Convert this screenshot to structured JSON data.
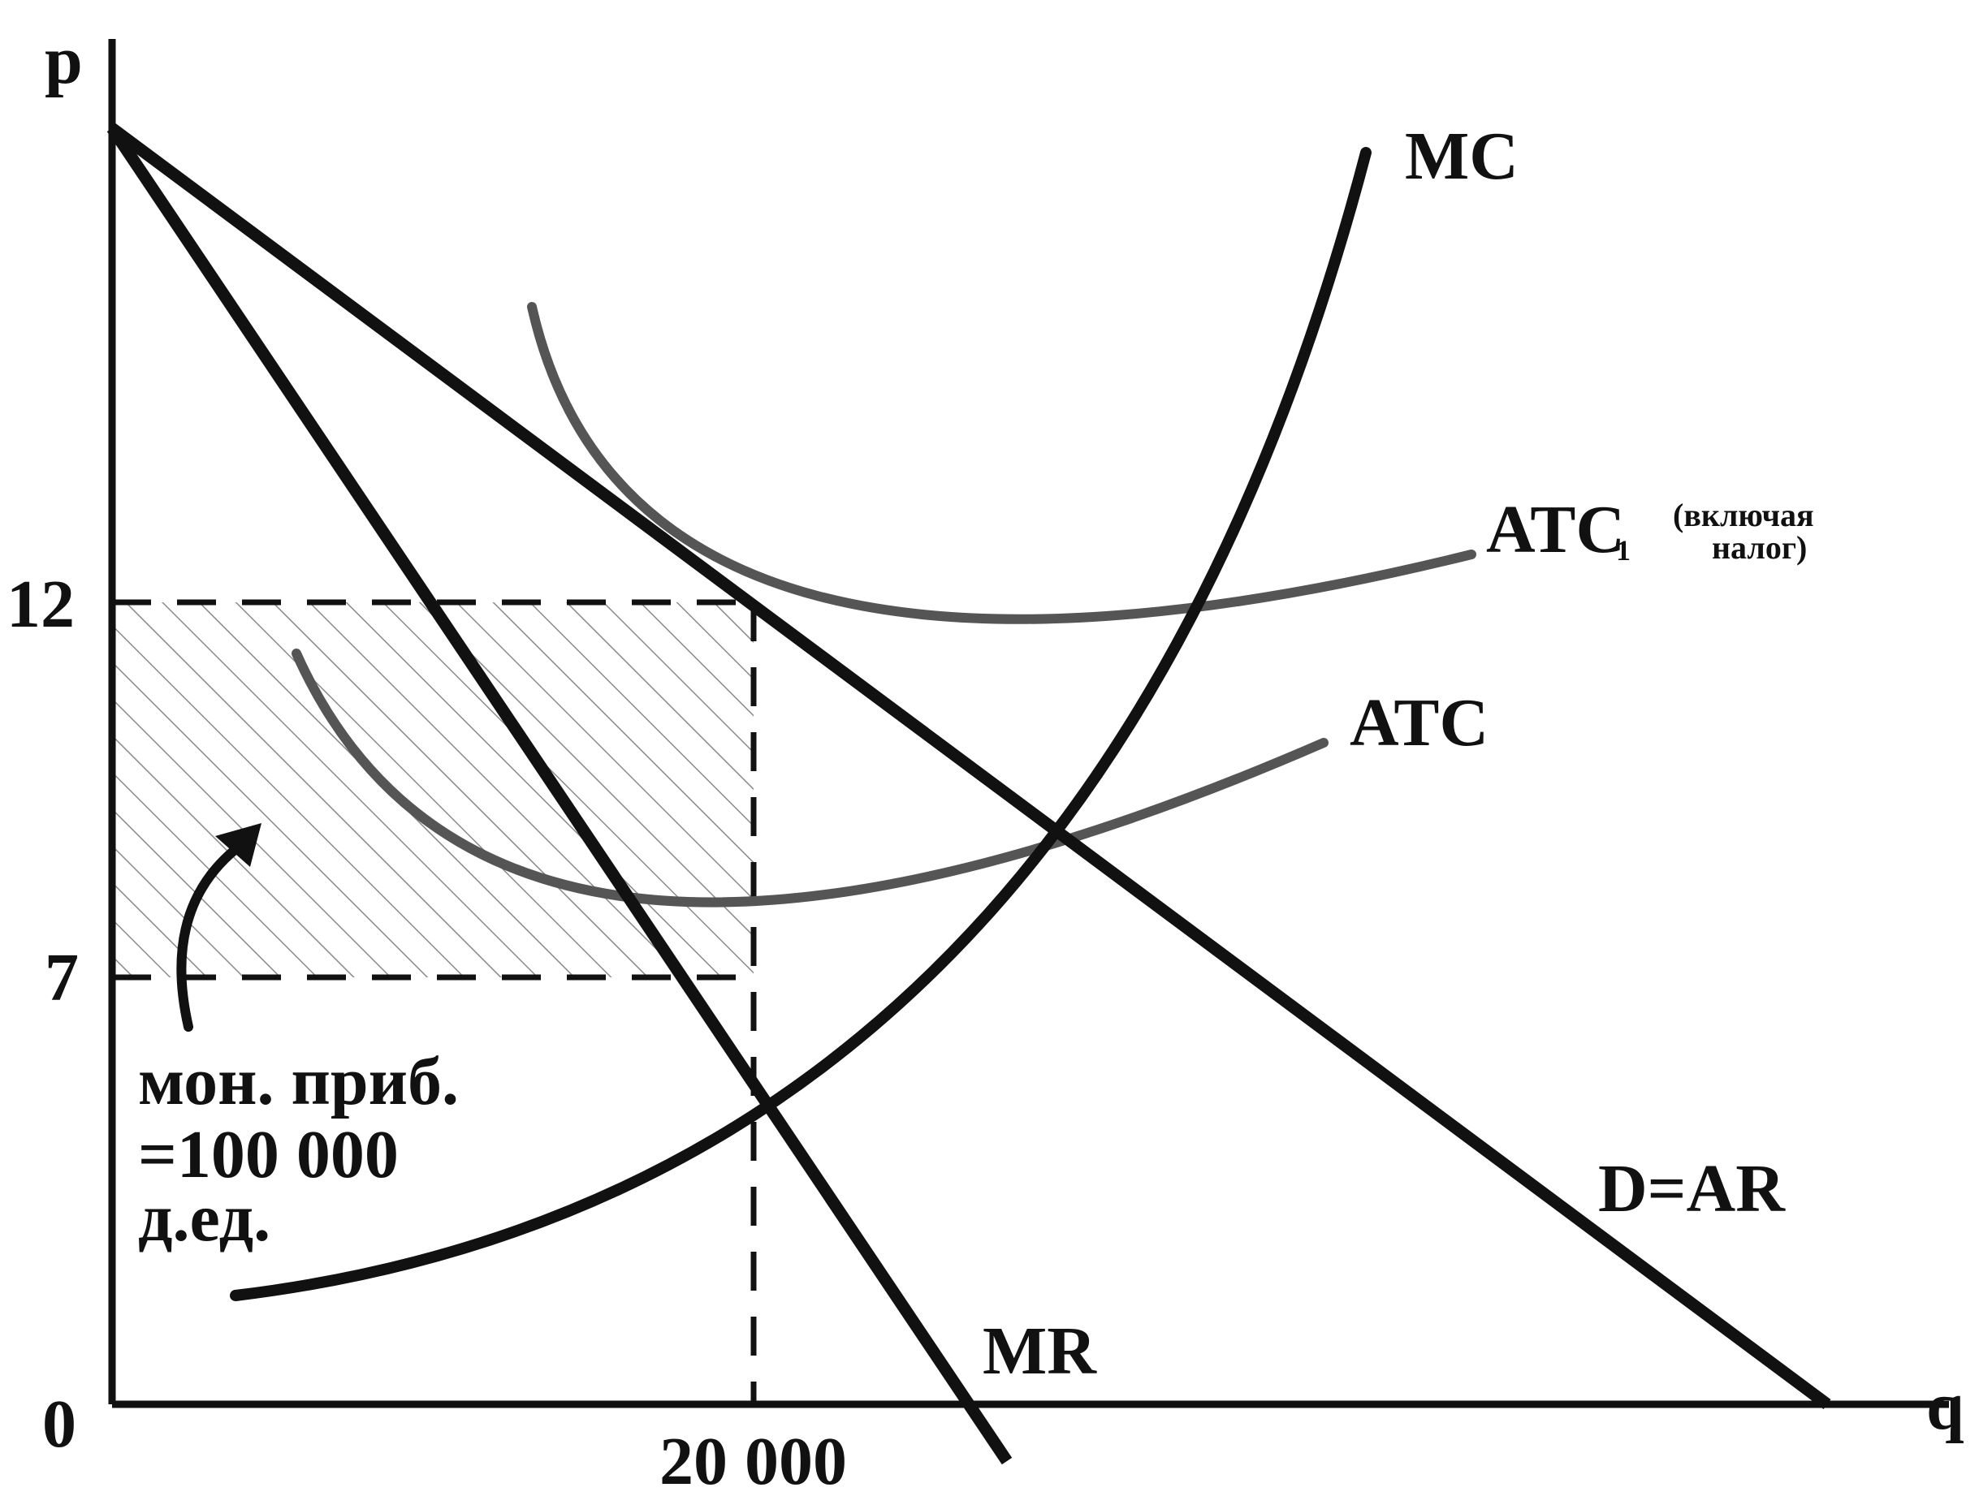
{
  "axes": {
    "y_label": "p",
    "x_label": "q",
    "origin_label": "0"
  },
  "ticks": {
    "p_high": "12",
    "p_low": "7",
    "q_mark": "20 000"
  },
  "curves": {
    "mc": "MC",
    "atc1_main": "ATC",
    "atc1_sub": "1",
    "atc1_note_line1": "(включая",
    "atc1_note_line2": "налог)",
    "atc": "ATC",
    "demand": "D=AR",
    "mr": "MR"
  },
  "profit_note": {
    "line1": "мон. приб.",
    "line2": "=100 000",
    "line3": "д.ед."
  },
  "colors": {
    "ink": "#111111",
    "gray_curve": "#555555",
    "hatch": "#8a8a8a"
  }
}
